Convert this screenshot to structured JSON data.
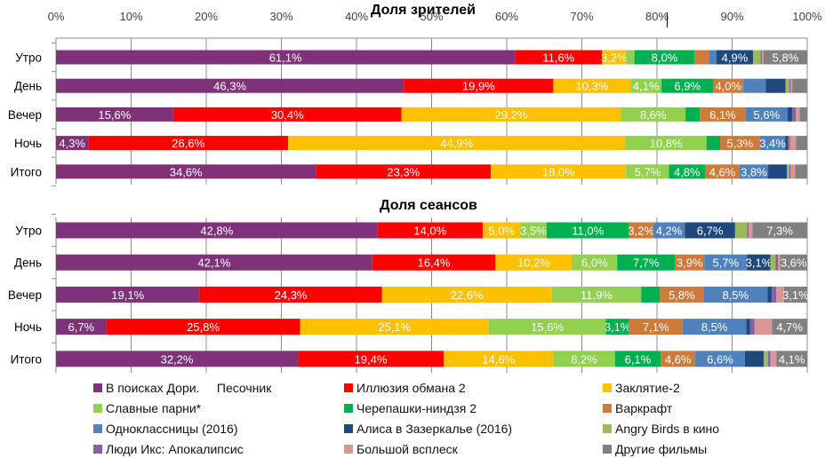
{
  "chart_data": [
    {
      "type": "bar",
      "orientation": "horizontal",
      "stacked": "percent",
      "title": "Доля зрителей",
      "xlabel": "",
      "ylabel": "",
      "xlim": [
        0,
        100
      ],
      "x_ticks": [
        "0%",
        "10%",
        "20%",
        "30%",
        "40%",
        "50%",
        "60%",
        "70%",
        "80%",
        "90%",
        "100%"
      ],
      "grid": true,
      "categories": [
        "Утро",
        "День",
        "Вечер",
        "Ночь",
        "Итого"
      ],
      "series": [
        {
          "name": "В поисках Дори.     Песочник",
          "color": "#7F3279",
          "values": [
            61.1,
            46.3,
            15.6,
            4.3,
            34.6
          ],
          "labels": [
            "61,1%",
            "46,3%",
            "15,6%",
            "4,3%",
            "34,6%"
          ]
        },
        {
          "name": "Иллюзия обмана 2",
          "color": "#FF0000",
          "values": [
            11.6,
            19.9,
            30.4,
            26.6,
            23.3
          ],
          "labels": [
            "11,6%",
            "19,9%",
            "30,4%",
            "26,6%",
            "23,3%"
          ]
        },
        {
          "name": "Заклятие-2",
          "color": "#FFC000",
          "values": [
            3.2,
            10.3,
            29.2,
            44.9,
            18.0
          ],
          "labels": [
            "3,2%",
            "10,3%",
            "29,2%",
            "44,9%",
            "18,0%"
          ]
        },
        {
          "name": "Славные парни*",
          "color": "#92D050",
          "values": [
            1.1,
            4.1,
            8.6,
            10.8,
            5.7
          ],
          "labels": [
            "",
            "4,1%",
            "8,6%",
            "10,8%",
            "5,7%"
          ]
        },
        {
          "name": "Черепашки-ниндзя 2",
          "color": "#00B050",
          "values": [
            8.0,
            6.9,
            1.9,
            1.8,
            4.8
          ],
          "labels": [
            "8,0%",
            "6,9%",
            "",
            "",
            "4,8%"
          ]
        },
        {
          "name": "Варкрафт",
          "color": "#D07A3A",
          "values": [
            1.9,
            4.0,
            6.1,
            5.3,
            4.6
          ],
          "labels": [
            "",
            "4,0%",
            "6,1%",
            "5,3%",
            "4,6%"
          ]
        },
        {
          "name": "Одноклассницы (2016)",
          "color": "#4F81BD",
          "values": [
            1.0,
            3.0,
            5.6,
            3.4,
            3.8
          ],
          "labels": [
            "",
            "",
            "5,6%",
            "3,4%",
            "3,8%"
          ]
        },
        {
          "name": "Алиса в Зазеркалье (2016)",
          "color": "#1F497D",
          "values": [
            4.9,
            2.6,
            0.6,
            0.3,
            2.5
          ],
          "labels": [
            "4,9%",
            "",
            "",
            "",
            ""
          ]
        },
        {
          "name": "Angry Birds в кино",
          "color": "#9BBB59",
          "values": [
            1.0,
            0.5,
            0.0,
            0.0,
            0.3
          ],
          "labels": [
            "",
            "",
            "",
            "",
            ""
          ]
        },
        {
          "name": "Люди Икс: Апокалипсис",
          "color": "#8064A2",
          "values": [
            0.2,
            0.2,
            0.5,
            0.3,
            0.2
          ],
          "labels": [
            "",
            "",
            "",
            "",
            ""
          ]
        },
        {
          "name": "Большой всплеск",
          "color": "#DA9694",
          "values": [
            0.2,
            0.2,
            0.5,
            0.8,
            0.6
          ],
          "labels": [
            "",
            "",
            "",
            "",
            ""
          ]
        },
        {
          "name": "Другие фильмы",
          "color": "#808080",
          "values": [
            5.8,
            2.0,
            1.0,
            1.5,
            1.6
          ],
          "labels": [
            "5,8%",
            "",
            "",
            "",
            ""
          ]
        }
      ]
    },
    {
      "type": "bar",
      "orientation": "horizontal",
      "stacked": "percent",
      "title": "Доля сеансов",
      "xlabel": "",
      "ylabel": "",
      "xlim": [
        0,
        100
      ],
      "grid": true,
      "categories": [
        "Утро",
        "День",
        "Вечер",
        "Ночь",
        "Итого"
      ],
      "series": [
        {
          "name": "В поисках Дори.     Песочник",
          "color": "#7F3279",
          "values": [
            42.8,
            42.1,
            19.1,
            6.7,
            32.2
          ],
          "labels": [
            "42,8%",
            "42,1%",
            "19,1%",
            "6,7%",
            "32,2%"
          ]
        },
        {
          "name": "Иллюзия обмана 2",
          "color": "#FF0000",
          "values": [
            14.0,
            16.4,
            24.3,
            25.8,
            19.4
          ],
          "labels": [
            "14,0%",
            "16,4%",
            "24,3%",
            "25,8%",
            "19,4%"
          ]
        },
        {
          "name": "Заклятие-2",
          "color": "#FFC000",
          "values": [
            5.0,
            10.2,
            22.6,
            25.1,
            14.6
          ],
          "labels": [
            "5,0%",
            "10,2%",
            "22,6%",
            "25,1%",
            "14,6%"
          ]
        },
        {
          "name": "Славные парни*",
          "color": "#92D050",
          "values": [
            3.5,
            6.0,
            11.9,
            15.6,
            8.2
          ],
          "labels": [
            "3,5%",
            "6,0%",
            "11,9%",
            "15,6%",
            "8,2%"
          ]
        },
        {
          "name": "Черепашки-ниндзя 2",
          "color": "#00B050",
          "values": [
            11.0,
            7.7,
            2.5,
            3.1,
            6.1
          ],
          "labels": [
            "11,0%",
            "7,7%",
            "",
            "3,1%",
            "6,1%"
          ]
        },
        {
          "name": "Варкрафт",
          "color": "#D07A3A",
          "values": [
            3.2,
            3.9,
            5.8,
            7.1,
            4.6
          ],
          "labels": [
            "3,2%",
            "3,9%",
            "5,8%",
            "7,1%",
            "4,6%"
          ]
        },
        {
          "name": "Одноклассницы (2016)",
          "color": "#4F81BD",
          "values": [
            4.2,
            5.7,
            8.5,
            8.5,
            6.6
          ],
          "labels": [
            "4,2%",
            "5,7%",
            "8,5%",
            "8,5%",
            "6,6%"
          ]
        },
        {
          "name": "Алиса в Зазеркалье (2016)",
          "color": "#1F497D",
          "values": [
            6.7,
            3.1,
            0.6,
            0.5,
            2.5
          ],
          "labels": [
            "6,7%",
            "3,1%",
            "",
            "",
            ""
          ]
        },
        {
          "name": "Angry Birds в кино",
          "color": "#9BBB59",
          "values": [
            1.6,
            0.7,
            0.0,
            0.0,
            0.6
          ],
          "labels": [
            "",
            "",
            "",
            "",
            ""
          ]
        },
        {
          "name": "Люди Икс: Апокалипсис",
          "color": "#8064A2",
          "values": [
            0.2,
            0.3,
            0.6,
            0.6,
            0.3
          ],
          "labels": [
            "",
            "",
            "",
            "",
            ""
          ]
        },
        {
          "name": "Большой всплеск",
          "color": "#DA9694",
          "values": [
            0.5,
            0.3,
            1.0,
            2.3,
            0.8
          ],
          "labels": [
            "",
            "",
            "",
            "",
            ""
          ]
        },
        {
          "name": "Другие фильмы",
          "color": "#808080",
          "values": [
            7.3,
            3.6,
            3.1,
            4.7,
            4.1
          ],
          "labels": [
            "7,3%",
            "3,6%",
            "3,1%",
            "4,7%",
            "4,1%"
          ]
        }
      ]
    }
  ],
  "legend": {
    "placement": "bottom",
    "items": [
      {
        "label": "В поисках Дори.     Песочник",
        "color": "#7F3279"
      },
      {
        "label": "Иллюзия обмана 2",
        "color": "#FF0000"
      },
      {
        "label": "Заклятие-2",
        "color": "#FFC000"
      },
      {
        "label": "Славные парни*",
        "color": "#92D050"
      },
      {
        "label": "Черепашки-ниндзя 2",
        "color": "#00B050"
      },
      {
        "label": "Варкрафт",
        "color": "#D07A3A"
      },
      {
        "label": "Одноклассницы (2016)",
        "color": "#4F81BD"
      },
      {
        "label": "Алиса в Зазеркалье (2016)",
        "color": "#1F497D"
      },
      {
        "label": "Angry Birds в кино",
        "color": "#9BBB59"
      },
      {
        "label": "Люди Икс: Апокалипсис",
        "color": "#8064A2"
      },
      {
        "label": "Большой всплеск",
        "color": "#DA9694"
      },
      {
        "label": "Другие фильмы",
        "color": "#808080"
      }
    ]
  }
}
